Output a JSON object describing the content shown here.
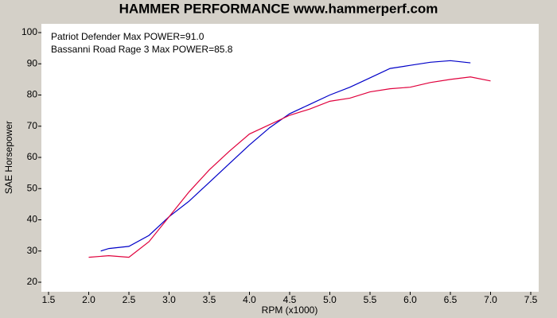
{
  "chart_data": {
    "type": "line",
    "title": "HAMMER PERFORMANCE www.hammerperf.com",
    "xlabel": "RPM (x1000)",
    "ylabel": "SAE Horsepower",
    "xlim": [
      1.5,
      7.5
    ],
    "ylim": [
      20,
      100
    ],
    "xticks": [
      1.5,
      {
        "value": 2,
        "label": "2.0"
      },
      2.5,
      {
        "value": 3,
        "label": "3.0"
      },
      3.5,
      {
        "value": 4,
        "label": "4.0"
      },
      4.5,
      {
        "value": 5,
        "label": "5.0"
      },
      5.5,
      {
        "value": 6,
        "label": "6.0"
      },
      6.5,
      {
        "value": 7,
        "label": "7.0"
      },
      7.5
    ],
    "yticks": [
      100,
      90,
      80,
      70,
      60,
      50,
      40,
      30,
      20
    ],
    "series": [
      {
        "name": "Patriot Defender  Max POWER=91.0",
        "color": "#0000c8",
        "x": [
          2.15,
          2.25,
          2.5,
          2.75,
          3.0,
          3.25,
          3.5,
          3.75,
          4.0,
          4.25,
          4.5,
          4.75,
          5.0,
          5.25,
          5.5,
          5.75,
          6.0,
          6.25,
          6.5,
          6.75
        ],
        "values": [
          30,
          30.8,
          31.5,
          35,
          41,
          46,
          52,
          58,
          64,
          69.5,
          74,
          77,
          80,
          82.5,
          85.5,
          88.5,
          89.5,
          90.5,
          91,
          90.3
        ]
      },
      {
        "name": "Bassanni Road Rage 3  Max POWER=85.8",
        "color": "#e0003c",
        "x": [
          2.0,
          2.25,
          2.5,
          2.75,
          3.0,
          3.25,
          3.5,
          3.75,
          4.0,
          4.25,
          4.5,
          4.75,
          5.0,
          5.25,
          5.5,
          5.75,
          6.0,
          6.25,
          6.5,
          6.75,
          7.0
        ],
        "values": [
          28,
          28.5,
          28,
          33,
          41,
          49,
          56,
          62,
          67.5,
          70.5,
          73.5,
          75.5,
          78,
          79,
          81,
          82,
          82.5,
          84,
          85,
          85.8,
          84.5
        ]
      }
    ]
  }
}
